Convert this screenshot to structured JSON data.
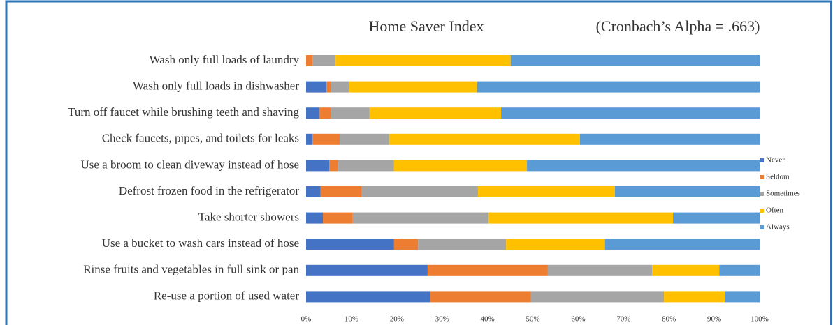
{
  "chart_data": {
    "type": "bar",
    "orientation": "horizontal",
    "stacked": true,
    "title": "Home Saver Index",
    "subtitle": "(Cronbach’s Alpha = .663)",
    "categories": [
      "Wash only full loads of laundry",
      "Wash only full loads in dishwasher",
      "Turn off faucet while brushing teeth and shaving",
      "Check faucets, pipes, and toilets for leaks",
      "Use a broom to clean diveway instead of hose",
      "Defrost frozen food in the refrigerator",
      "Take shorter showers",
      "Use a bucket to wash cars instead of hose",
      "Rinse fruits and vegetables in full sink or pan",
      "Re-use a portion of used water"
    ],
    "series": [
      {
        "name": "Never",
        "color": "#4472c4",
        "values": [
          0,
          4.5,
          2.9,
          1.4,
          5.1,
          3.2,
          3.7,
          19.4,
          26.8,
          27.4
        ]
      },
      {
        "name": "Seldom",
        "color": "#ed7d31",
        "values": [
          1.4,
          0.9,
          2.5,
          6.0,
          2.0,
          9.1,
          6.6,
          5.3,
          26.5,
          22.2
        ]
      },
      {
        "name": "Sometimes",
        "color": "#a5a5a5",
        "values": [
          5.1,
          4.0,
          8.6,
          10.9,
          12.3,
          25.6,
          29.9,
          19.4,
          23.0,
          29.3
        ]
      },
      {
        "name": "Often",
        "color": "#ffc000",
        "values": [
          38.6,
          28.3,
          29.0,
          42.1,
          29.3,
          30.2,
          40.7,
          21.8,
          14.8,
          13.4
        ]
      },
      {
        "name": "Always",
        "color": "#5b9bd5",
        "values": [
          54.9,
          62.3,
          57.0,
          39.6,
          51.3,
          31.9,
          19.1,
          34.1,
          8.9,
          7.7
        ]
      }
    ],
    "xlim": [
      0,
      100
    ],
    "xticks": [
      {
        "value": 0,
        "label": "0%"
      },
      {
        "value": 10,
        "label": "10%"
      },
      {
        "value": 20,
        "label": "20%"
      },
      {
        "value": 30,
        "label": "30%"
      },
      {
        "value": 40,
        "label": "40%"
      },
      {
        "value": 50,
        "label": "50%"
      },
      {
        "value": 60,
        "label": "60%"
      },
      {
        "value": 70,
        "label": "70%"
      },
      {
        "value": 80,
        "label": "80%"
      },
      {
        "value": 90,
        "label": "90%"
      },
      {
        "value": 100,
        "label": "100%"
      }
    ],
    "grid": false,
    "legend": "right"
  }
}
